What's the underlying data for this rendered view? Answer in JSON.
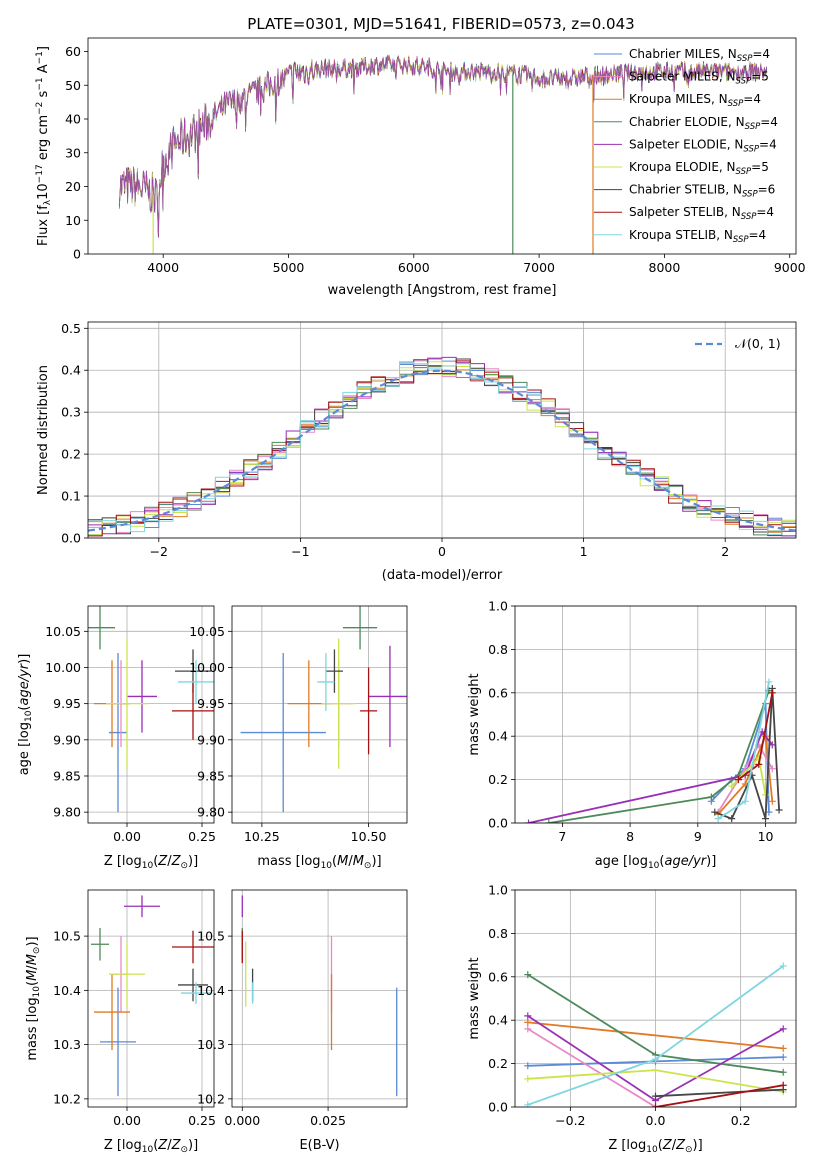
{
  "figure_title": "PLATE=0301, MJD=51641, FIBERID=0573, z=0.043",
  "series_colors": {
    "Chabrier MILES": "#5b8ad6",
    "Salpeter MILES": "#e98ac7",
    "Kroupa MILES": "#e07b23",
    "Chabrier ELODIE": "#4d8a5a",
    "Salpeter ELODIE": "#9a2fb5",
    "Kroupa ELODIE": "#cce44a",
    "Chabrier STELIB": "#454545",
    "Salpeter STELIB": "#a51212",
    "Kroupa STELIB": "#7ed6e0"
  },
  "chart_data": [
    {
      "id": "spectrum",
      "type": "line",
      "xlabel": "wavelength [Angstrom, rest frame]",
      "ylabel": "Flux [f_λ10⁻¹⁷ erg cm⁻² s⁻¹ A⁻¹]",
      "xlim": [
        3400,
        9050
      ],
      "ylim": [
        0,
        64
      ],
      "xticks": [
        4000,
        5000,
        6000,
        7000,
        8000,
        9000
      ],
      "yticks": [
        0,
        10,
        20,
        30,
        40,
        50,
        60
      ],
      "grid": false,
      "legend_position": "top-right",
      "continuum": [
        [
          3650,
          20
        ],
        [
          3800,
          20
        ],
        [
          3950,
          17
        ],
        [
          4000,
          27
        ],
        [
          4100,
          33
        ],
        [
          4250,
          36
        ],
        [
          4350,
          39
        ],
        [
          4500,
          44
        ],
        [
          4700,
          47
        ],
        [
          4900,
          51
        ],
        [
          5100,
          54
        ],
        [
          5300,
          55
        ],
        [
          5500,
          55
        ],
        [
          5700,
          56
        ],
        [
          6000,
          56
        ],
        [
          6300,
          54
        ],
        [
          6600,
          54
        ],
        [
          6900,
          53
        ],
        [
          7000,
          52
        ],
        [
          7200,
          52
        ],
        [
          7500,
          53
        ],
        [
          7800,
          54
        ],
        [
          8200,
          54
        ],
        [
          8600,
          54
        ],
        [
          8820,
          54
        ]
      ],
      "dips": [
        [
          3920,
          0
        ],
        [
          6790,
          0
        ],
        [
          7430,
          0
        ]
      ],
      "legend": [
        {
          "label": "Chabrier MILES, N",
          "sub": "SSP",
          "suffix": "=4"
        },
        {
          "label": "Salpeter MILES, N",
          "sub": "SSP",
          "suffix": "=5"
        },
        {
          "label": "Kroupa MILES, N",
          "sub": "SSP",
          "suffix": "=4"
        },
        {
          "label": "Chabrier ELODIE, N",
          "sub": "SSP",
          "suffix": "=4"
        },
        {
          "label": "Salpeter ELODIE, N",
          "sub": "SSP",
          "suffix": "=4"
        },
        {
          "label": "Kroupa ELODIE, N",
          "sub": "SSP",
          "suffix": "=5"
        },
        {
          "label": "Chabrier STELIB, N",
          "sub": "SSP",
          "suffix": "=6"
        },
        {
          "label": "Salpeter STELIB, N",
          "sub": "SSP",
          "suffix": "=4"
        },
        {
          "label": "Kroupa STELIB, N",
          "sub": "SSP",
          "suffix": "=4"
        }
      ]
    },
    {
      "id": "residual_hist",
      "type": "area",
      "xlabel": "(data-model)/error",
      "ylabel": "Normed distribution",
      "xlim": [
        -2.5,
        2.5
      ],
      "ylim": [
        0,
        0.515
      ],
      "xticks": [
        -2,
        -1,
        0,
        1,
        2
      ],
      "yticks": [
        0.0,
        0.1,
        0.2,
        0.3,
        0.4,
        0.5
      ],
      "grid": true,
      "bin_width": 0.1,
      "legend_position": "top-right",
      "legend_label": "𝒩(0, 1)"
    },
    {
      "id": "age_vs_Z",
      "type": "scatter",
      "xlabel": "Z [log₁₀(Z/Z⊙)]",
      "ylabel": "age  [log₁₀(age/yr)]",
      "xlim": [
        -0.13,
        0.29
      ],
      "ylim": [
        9.785,
        10.085
      ],
      "xticks": [
        0.0,
        0.25
      ],
      "yticks": [
        9.8,
        9.85,
        9.9,
        9.95,
        10.0,
        10.05
      ],
      "grid": true,
      "points": [
        {
          "series": "Chabrier MILES",
          "x": -0.03,
          "y": 9.91,
          "xerr": 0.03,
          "yerr": 0.11
        },
        {
          "series": "Salpeter MILES",
          "x": -0.02,
          "y": 9.95,
          "xerr": 0.03,
          "yerr": 0.06
        },
        {
          "series": "Kroupa MILES",
          "x": -0.05,
          "y": 9.95,
          "xerr": 0.06,
          "yerr": 0.06
        },
        {
          "series": "Chabrier ELODIE",
          "x": -0.09,
          "y": 10.055,
          "xerr": 0.05,
          "yerr": 0.03
        },
        {
          "series": "Salpeter ELODIE",
          "x": 0.05,
          "y": 9.96,
          "xerr": 0.05,
          "yerr": 0.05
        },
        {
          "series": "Kroupa ELODIE",
          "x": 0.0,
          "y": 9.95,
          "xerr": 0.07,
          "yerr": 0.09
        },
        {
          "series": "Chabrier STELIB",
          "x": 0.22,
          "y": 9.995,
          "xerr": 0.06,
          "yerr": 0.03
        },
        {
          "series": "Salpeter STELIB",
          "x": 0.22,
          "y": 9.94,
          "xerr": 0.07,
          "yerr": 0.04
        },
        {
          "series": "Kroupa STELIB",
          "x": 0.23,
          "y": 9.98,
          "xerr": 0.06,
          "yerr": 0.03
        }
      ]
    },
    {
      "id": "age_vs_mass",
      "type": "scatter",
      "xlabel": "mass [log₁₀(M/M⊙)]",
      "ylabel": "",
      "xlim": [
        10.18,
        10.59
      ],
      "ylim": [
        9.785,
        10.085
      ],
      "xticks": [
        10.25,
        10.5
      ],
      "yticks": [
        9.8,
        9.85,
        9.9,
        9.95,
        10.0,
        10.05
      ],
      "grid": true,
      "points": [
        {
          "series": "Chabrier MILES",
          "x": 10.3,
          "y": 9.91,
          "xerr": 0.1,
          "yerr": 0.11
        },
        {
          "series": "Salpeter MILES",
          "x": 10.43,
          "y": 9.95,
          "xerr": 0.03,
          "yerr": 0.06
        },
        {
          "series": "Kroupa MILES",
          "x": 10.36,
          "y": 9.95,
          "xerr": 0.05,
          "yerr": 0.06
        },
        {
          "series": "Chabrier ELODIE",
          "x": 10.48,
          "y": 10.055,
          "xerr": 0.04,
          "yerr": 0.03
        },
        {
          "series": "Salpeter ELODIE",
          "x": 10.55,
          "y": 9.96,
          "xerr": 0.05,
          "yerr": 0.07
        },
        {
          "series": "Kroupa ELODIE",
          "x": 10.43,
          "y": 9.95,
          "xerr": 0.04,
          "yerr": 0.09
        },
        {
          "series": "Chabrier STELIB",
          "x": 10.42,
          "y": 9.995,
          "xerr": 0.02,
          "yerr": 0.03
        },
        {
          "series": "Salpeter STELIB",
          "x": 10.5,
          "y": 9.94,
          "xerr": 0.02,
          "yerr": 0.06
        },
        {
          "series": "Kroupa STELIB",
          "x": 10.4,
          "y": 9.98,
          "xerr": 0.02,
          "yerr": 0.04
        }
      ]
    },
    {
      "id": "weight_vs_age",
      "type": "line",
      "xlabel": "age  [log₁₀(age/yr)]",
      "ylabel": "mass weight",
      "xlim": [
        6.3,
        10.45
      ],
      "ylim": [
        0,
        1.0
      ],
      "xticks": [
        7,
        8,
        9,
        10
      ],
      "yticks": [
        0.0,
        0.2,
        0.4,
        0.6,
        0.8,
        1.0
      ],
      "grid": true,
      "series": [
        {
          "name": "Chabrier MILES",
          "points": [
            [
              9.2,
              0.1
            ],
            [
              9.5,
              0.2
            ],
            [
              9.7,
              0.25
            ],
            [
              10.0,
              0.55
            ],
            [
              10.05,
              0.05
            ]
          ]
        },
        {
          "name": "Salpeter MILES",
          "points": [
            [
              9.3,
              0.05
            ],
            [
              9.6,
              0.2
            ],
            [
              9.9,
              0.36
            ],
            [
              10.1,
              0.25
            ]
          ]
        },
        {
          "name": "Kroupa MILES",
          "points": [
            [
              9.3,
              0.04
            ],
            [
              9.7,
              0.18
            ],
            [
              10.0,
              0.4
            ],
            [
              10.1,
              0.1
            ]
          ]
        },
        {
          "name": "Chabrier ELODIE",
          "points": [
            [
              6.8,
              0.0
            ],
            [
              9.2,
              0.12
            ],
            [
              9.6,
              0.22
            ],
            [
              10.05,
              0.61
            ]
          ]
        },
        {
          "name": "Salpeter ELODIE",
          "points": [
            [
              6.5,
              0.0
            ],
            [
              9.7,
              0.22
            ],
            [
              9.95,
              0.42
            ],
            [
              10.1,
              0.36
            ]
          ]
        },
        {
          "name": "Kroupa ELODIE",
          "points": [
            [
              9.5,
              0.17
            ],
            [
              9.9,
              0.3
            ],
            [
              10.0,
              0.13
            ]
          ]
        },
        {
          "name": "Chabrier STELIB",
          "points": [
            [
              9.25,
              0.05
            ],
            [
              9.5,
              0.02
            ],
            [
              9.8,
              0.22
            ],
            [
              10.0,
              0.02
            ],
            [
              10.1,
              0.62
            ],
            [
              10.2,
              0.06
            ]
          ]
        },
        {
          "name": "Salpeter STELIB",
          "points": [
            [
              9.6,
              0.2
            ],
            [
              9.9,
              0.27
            ],
            [
              10.1,
              0.6
            ]
          ]
        },
        {
          "name": "Kroupa STELIB",
          "points": [
            [
              9.3,
              0.02
            ],
            [
              9.7,
              0.1
            ],
            [
              10.05,
              0.65
            ]
          ]
        }
      ]
    },
    {
      "id": "mass_vs_Z",
      "type": "scatter",
      "xlabel": "Z [log₁₀(Z/Z⊙)]",
      "ylabel": "mass [log₁₀(M/M⊙)]",
      "xlim": [
        -0.13,
        0.29
      ],
      "ylim": [
        10.185,
        10.585
      ],
      "xticks": [
        0.0,
        0.25
      ],
      "yticks": [
        10.2,
        10.3,
        10.4,
        10.5
      ],
      "grid": true,
      "points": [
        {
          "series": "Chabrier MILES",
          "x": -0.03,
          "y": 10.305,
          "xerr": 0.06,
          "yerr": 0.1
        },
        {
          "series": "Salpeter MILES",
          "x": -0.02,
          "y": 10.43,
          "xerr": 0.03,
          "yerr": 0.07
        },
        {
          "series": "Kroupa MILES",
          "x": -0.05,
          "y": 10.36,
          "xerr": 0.06,
          "yerr": 0.07
        },
        {
          "series": "Chabrier ELODIE",
          "x": -0.09,
          "y": 10.485,
          "xerr": 0.03,
          "yerr": 0.03
        },
        {
          "series": "Salpeter ELODIE",
          "x": 0.05,
          "y": 10.555,
          "xerr": 0.06,
          "yerr": 0.02
        },
        {
          "series": "Kroupa ELODIE",
          "x": 0.0,
          "y": 10.43,
          "xerr": 0.06,
          "yerr": 0.06
        },
        {
          "series": "Chabrier STELIB",
          "x": 0.22,
          "y": 10.41,
          "xerr": 0.05,
          "yerr": 0.03
        },
        {
          "series": "Salpeter STELIB",
          "x": 0.22,
          "y": 10.48,
          "xerr": 0.07,
          "yerr": 0.03
        },
        {
          "series": "Kroupa STELIB",
          "x": 0.23,
          "y": 10.395,
          "xerr": 0.05,
          "yerr": 0.02
        }
      ]
    },
    {
      "id": "mass_vs_ebv",
      "type": "scatter",
      "xlabel": "E(B-V)",
      "ylabel": "",
      "xlim": [
        -0.003,
        0.048
      ],
      "ylim": [
        10.185,
        10.585
      ],
      "xticks": [
        0.0,
        0.025
      ],
      "yticks": [
        10.2,
        10.3,
        10.4,
        10.5
      ],
      "grid": true,
      "points": [
        {
          "series": "Chabrier MILES",
          "x": 0.045,
          "y": 10.305,
          "xerr": 0,
          "yerr": 0.1
        },
        {
          "series": "Salpeter MILES",
          "x": 0.026,
          "y": 10.43,
          "xerr": 0,
          "yerr": 0.07
        },
        {
          "series": "Kroupa MILES",
          "x": 0.026,
          "y": 10.36,
          "xerr": 0,
          "yerr": 0.07
        },
        {
          "series": "Chabrier ELODIE",
          "x": 0.0,
          "y": 10.485,
          "xerr": 0,
          "yerr": 0.03
        },
        {
          "series": "Salpeter ELODIE",
          "x": 0.0,
          "y": 10.555,
          "xerr": 0,
          "yerr": 0.02
        },
        {
          "series": "Kroupa ELODIE",
          "x": 0.001,
          "y": 10.43,
          "xerr": 0,
          "yerr": 0.06
        },
        {
          "series": "Chabrier STELIB",
          "x": 0.003,
          "y": 10.41,
          "xerr": 0,
          "yerr": 0.03
        },
        {
          "series": "Salpeter STELIB",
          "x": 0.0,
          "y": 10.48,
          "xerr": 0,
          "yerr": 0.03
        },
        {
          "series": "Kroupa STELIB",
          "x": 0.003,
          "y": 10.395,
          "xerr": 0,
          "yerr": 0.02
        }
      ]
    },
    {
      "id": "weight_vs_Z",
      "type": "line",
      "xlabel": "Z [log₁₀(Z/Z⊙)]",
      "ylabel": "mass weight",
      "xlim": [
        -0.33,
        0.33
      ],
      "ylim": [
        0,
        1.0
      ],
      "xticks": [
        -0.2,
        0.0,
        0.2
      ],
      "yticks": [
        0.0,
        0.2,
        0.4,
        0.6,
        0.8,
        1.0
      ],
      "grid": true,
      "series": [
        {
          "name": "Chabrier MILES",
          "points": [
            [
              -0.3,
              0.19
            ],
            [
              0.0,
              0.21
            ],
            [
              0.3,
              0.23
            ]
          ]
        },
        {
          "name": "Salpeter MILES",
          "points": [
            [
              -0.3,
              0.36
            ],
            [
              0.0,
              0.0
            ],
            [
              0.3,
              0.1
            ]
          ]
        },
        {
          "name": "Kroupa MILES",
          "points": [
            [
              -0.3,
              0.39
            ],
            [
              0.3,
              0.27
            ]
          ]
        },
        {
          "name": "Chabrier ELODIE",
          "points": [
            [
              -0.3,
              0.61
            ],
            [
              0.0,
              0.24
            ],
            [
              0.3,
              0.16
            ]
          ]
        },
        {
          "name": "Salpeter ELODIE",
          "points": [
            [
              -0.3,
              0.42
            ],
            [
              0.0,
              0.03
            ],
            [
              0.3,
              0.36
            ]
          ]
        },
        {
          "name": "Kroupa ELODIE",
          "points": [
            [
              -0.3,
              0.13
            ],
            [
              0.0,
              0.17
            ],
            [
              0.3,
              0.07
            ]
          ]
        },
        {
          "name": "Chabrier STELIB",
          "points": [
            [
              0.0,
              0.05
            ],
            [
              0.3,
              0.08
            ]
          ]
        },
        {
          "name": "Salpeter STELIB",
          "points": [
            [
              0.0,
              0.0
            ],
            [
              0.3,
              0.1
            ]
          ]
        },
        {
          "name": "Kroupa STELIB",
          "points": [
            [
              -0.3,
              0.01
            ],
            [
              0.0,
              0.22
            ],
            [
              0.3,
              0.65
            ]
          ]
        }
      ]
    }
  ]
}
